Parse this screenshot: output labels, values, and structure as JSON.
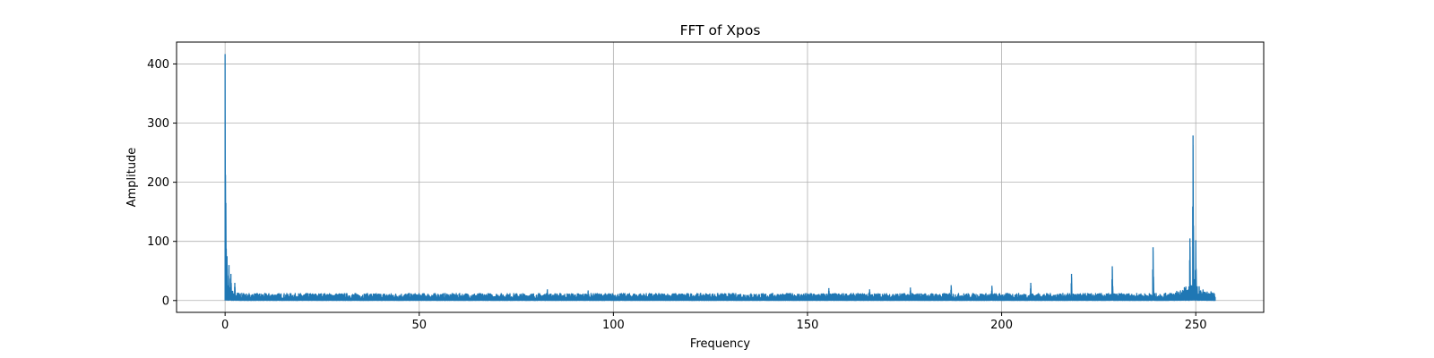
{
  "chart_data": {
    "type": "line",
    "title": "FFT of Xpos",
    "xlabel": "Frequency",
    "ylabel": "Amplitude",
    "xlim": [
      -12.5,
      267.5
    ],
    "ylim": [
      -20,
      437
    ],
    "xticks": [
      0,
      50,
      100,
      150,
      200,
      250
    ],
    "yticks": [
      0,
      100,
      200,
      300,
      400
    ],
    "grid": true,
    "line_color": "#1f77b4",
    "noise_floor": 12,
    "x_range": [
      0,
      255
    ],
    "peaks": [
      {
        "x": 0.0,
        "y": 416
      },
      {
        "x": 0.2,
        "y": 165
      },
      {
        "x": 0.5,
        "y": 75
      },
      {
        "x": 1.0,
        "y": 60
      },
      {
        "x": 1.5,
        "y": 45
      },
      {
        "x": 2.5,
        "y": 30
      },
      {
        "x": 83.0,
        "y": 19
      },
      {
        "x": 93.5,
        "y": 17
      },
      {
        "x": 155.5,
        "y": 21
      },
      {
        "x": 166.0,
        "y": 19
      },
      {
        "x": 176.5,
        "y": 22
      },
      {
        "x": 187.0,
        "y": 26
      },
      {
        "x": 197.5,
        "y": 25
      },
      {
        "x": 207.5,
        "y": 30
      },
      {
        "x": 218.0,
        "y": 45
      },
      {
        "x": 228.5,
        "y": 58
      },
      {
        "x": 239.0,
        "y": 90
      },
      {
        "x": 248.5,
        "y": 105
      },
      {
        "x": 249.3,
        "y": 279
      },
      {
        "x": 250.0,
        "y": 102
      }
    ]
  }
}
